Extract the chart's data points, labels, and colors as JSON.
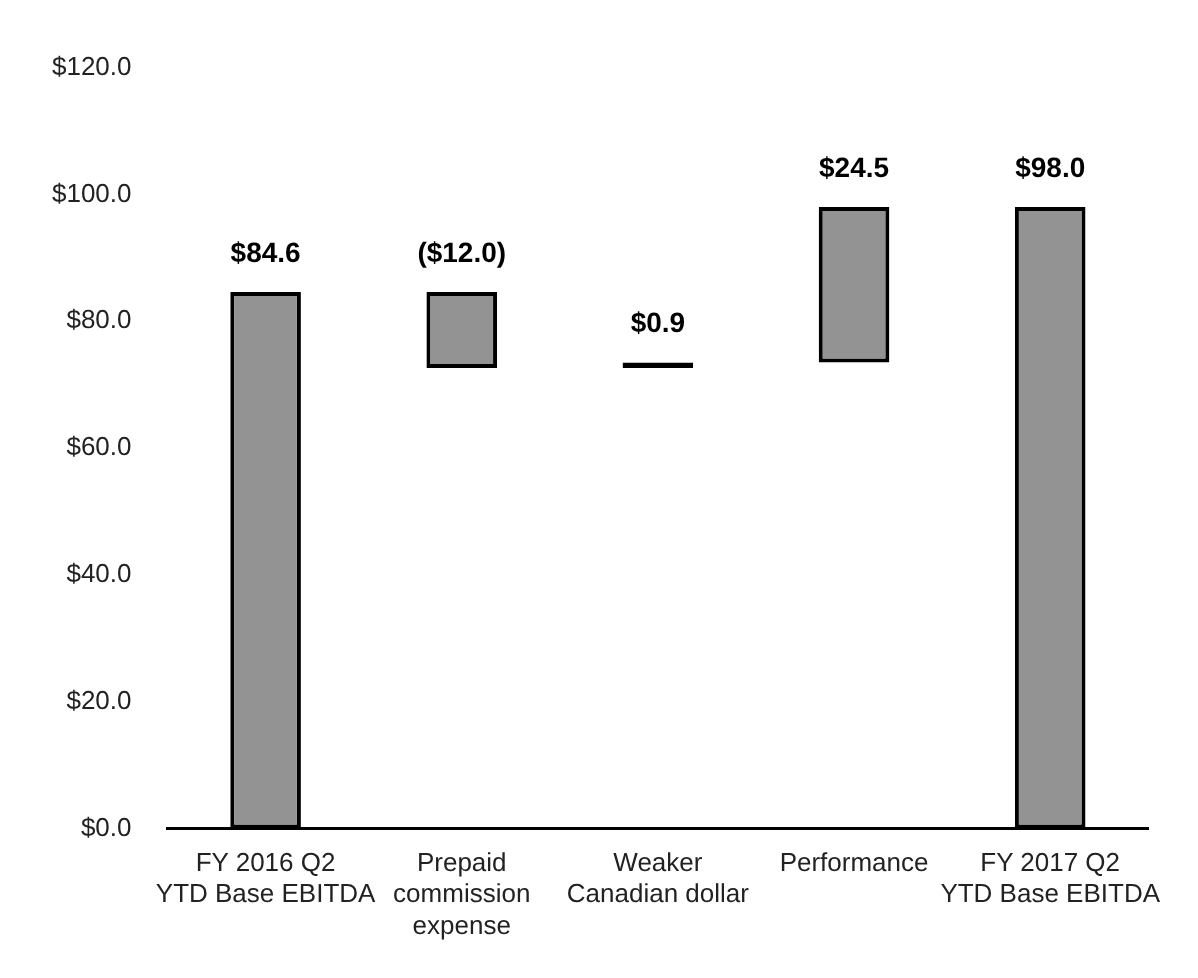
{
  "chart_data": {
    "type": "bar",
    "categories": [
      "FY 2016 Q2\nYTD Base EBITDA",
      "Prepaid\ncommission\nexpense",
      "Weaker\nCanadian dollar",
      "Performance",
      "FY 2017 Q2\nYTD Base EBITDA"
    ],
    "values": [
      84.6,
      -12.0,
      0.9,
      24.5,
      98.0
    ],
    "base": [
      0,
      84.6,
      72.6,
      73.5,
      0
    ],
    "value_labels": [
      "$84.6",
      "($12.0)",
      "$0.9",
      "$24.5",
      "$98.0"
    ],
    "colors": [
      "#939393",
      "#939393",
      "#000000",
      "#939393",
      "#939393"
    ],
    "ylim": [
      0,
      120
    ],
    "yticks": [
      {
        "value": 0,
        "label": "$0.0"
      },
      {
        "value": 20,
        "label": "$20.0"
      },
      {
        "value": 40,
        "label": "$40.0"
      },
      {
        "value": 60,
        "label": "$60.0"
      },
      {
        "value": 80,
        "label": "$80.0"
      },
      {
        "value": 100,
        "label": "$100.0"
      },
      {
        "value": 120,
        "label": "$120.0"
      }
    ],
    "grid": false,
    "legend": false
  }
}
